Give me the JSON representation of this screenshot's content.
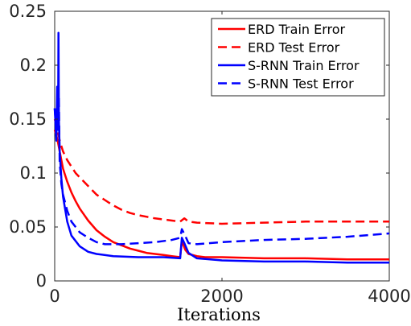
{
  "chart_data": {
    "type": "line",
    "title": "",
    "xlabel": "Iterations",
    "ylabel": "",
    "xlim": [
      0,
      4000
    ],
    "ylim": [
      0,
      0.25
    ],
    "xticks": [
      0,
      2000,
      4000
    ],
    "xtick_labels": [
      "0",
      "2000",
      "4000"
    ],
    "yticks": [
      0,
      0.05,
      0.1,
      0.15,
      0.2,
      0.25
    ],
    "ytick_labels": [
      "0",
      "0.05",
      "0.1",
      "0.15",
      "0.2",
      "0.25"
    ],
    "grid": false,
    "legend_position": "top-right",
    "series": [
      {
        "name": "ERD Train Error",
        "color": "#ff0000",
        "style": "solid",
        "x": [
          0,
          20,
          40,
          60,
          80,
          100,
          150,
          200,
          250,
          300,
          400,
          500,
          600,
          700,
          800,
          900,
          1000,
          1100,
          1200,
          1300,
          1400,
          1500,
          1520,
          1540,
          1560,
          1600,
          1700,
          1800,
          2000,
          2500,
          3000,
          3500,
          4000
        ],
        "y": [
          0.14,
          0.135,
          0.128,
          0.12,
          0.112,
          0.104,
          0.092,
          0.082,
          0.074,
          0.067,
          0.056,
          0.047,
          0.041,
          0.036,
          0.033,
          0.03,
          0.028,
          0.026,
          0.025,
          0.024,
          0.023,
          0.022,
          0.037,
          0.033,
          0.029,
          0.025,
          0.023,
          0.022,
          0.022,
          0.021,
          0.021,
          0.02,
          0.02
        ]
      },
      {
        "name": "ERD Test Error",
        "color": "#ff0000",
        "style": "dashed",
        "x": [
          0,
          20,
          40,
          60,
          80,
          100,
          150,
          200,
          250,
          300,
          400,
          500,
          600,
          700,
          800,
          900,
          1000,
          1200,
          1400,
          1500,
          1550,
          1600,
          1700,
          2000,
          2500,
          3000,
          3500,
          4000
        ],
        "y": [
          0.15,
          0.145,
          0.138,
          0.13,
          0.125,
          0.12,
          0.112,
          0.106,
          0.1,
          0.096,
          0.088,
          0.08,
          0.075,
          0.07,
          0.066,
          0.063,
          0.061,
          0.058,
          0.056,
          0.055,
          0.058,
          0.055,
          0.054,
          0.053,
          0.054,
          0.055,
          0.055,
          0.055
        ]
      },
      {
        "name": "S-RNN Train Error",
        "color": "#0000ff",
        "style": "solid",
        "x": [
          0,
          20,
          30,
          40,
          45,
          50,
          60,
          80,
          100,
          150,
          200,
          300,
          400,
          500,
          700,
          1000,
          1300,
          1500,
          1520,
          1550,
          1600,
          1700,
          2000,
          2500,
          3000,
          3500,
          4000
        ],
        "y": [
          0.16,
          0.13,
          0.18,
          0.14,
          0.23,
          0.15,
          0.12,
          0.095,
          0.078,
          0.055,
          0.042,
          0.032,
          0.027,
          0.025,
          0.023,
          0.022,
          0.022,
          0.021,
          0.04,
          0.035,
          0.026,
          0.021,
          0.019,
          0.018,
          0.018,
          0.017,
          0.017
        ]
      },
      {
        "name": "S-RNN Test Error",
        "color": "#0000ff",
        "style": "dashed",
        "x": [
          0,
          20,
          40,
          50,
          60,
          80,
          100,
          150,
          200,
          300,
          400,
          500,
          600,
          800,
          1000,
          1200,
          1400,
          1500,
          1520,
          1560,
          1600,
          1700,
          2000,
          2500,
          3000,
          3500,
          4000
        ],
        "y": [
          0.16,
          0.14,
          0.16,
          0.17,
          0.11,
          0.09,
          0.08,
          0.065,
          0.055,
          0.045,
          0.04,
          0.036,
          0.034,
          0.034,
          0.035,
          0.036,
          0.038,
          0.04,
          0.048,
          0.042,
          0.035,
          0.034,
          0.036,
          0.038,
          0.039,
          0.041,
          0.044
        ]
      }
    ]
  }
}
